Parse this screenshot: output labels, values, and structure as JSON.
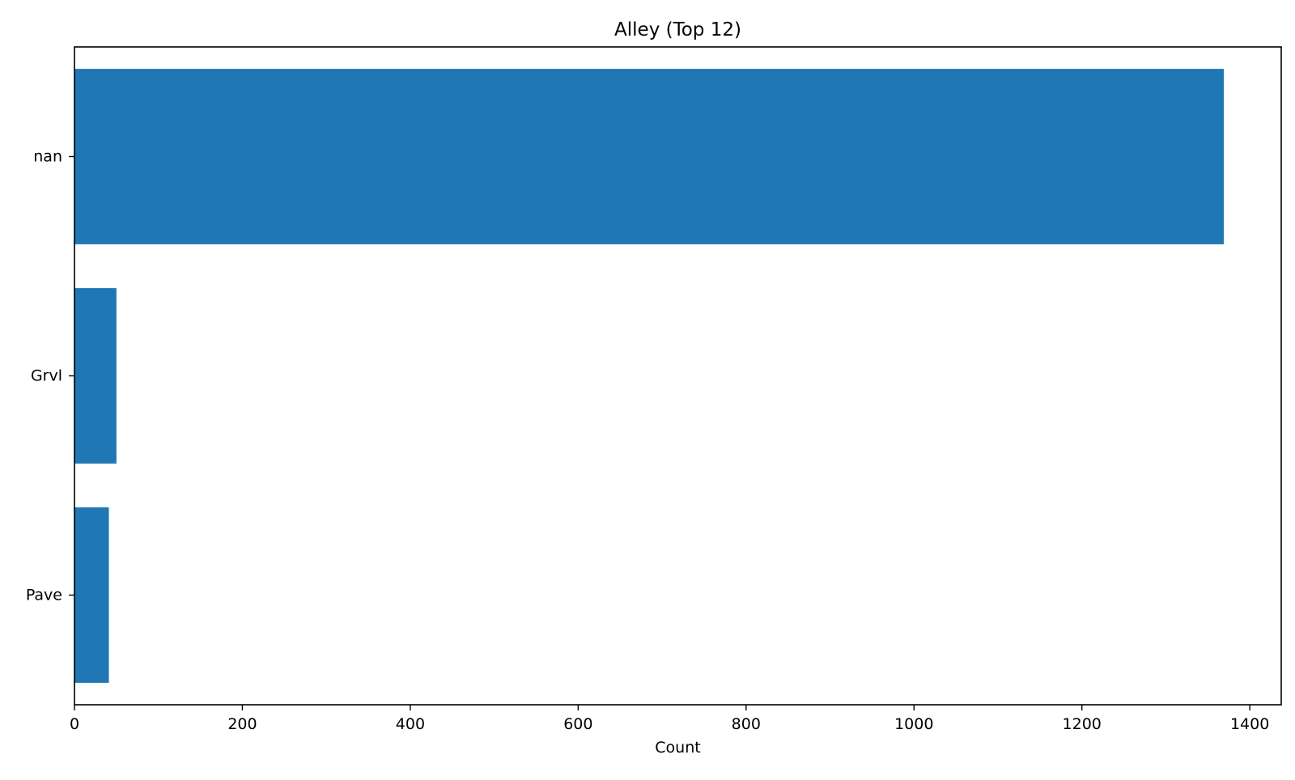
{
  "chart_data": {
    "type": "bar",
    "orientation": "horizontal",
    "title": "Alley (Top 12)",
    "xlabel": "Count",
    "ylabel": "",
    "categories": [
      "nan",
      "Grvl",
      "Pave"
    ],
    "values": [
      1369,
      50,
      41
    ],
    "xlim": [
      0,
      1437.45
    ],
    "xticks": [
      0,
      200,
      400,
      600,
      800,
      1000,
      1200,
      1400
    ],
    "grid": false,
    "legend": "none",
    "bar_color": "#1f77b4"
  }
}
